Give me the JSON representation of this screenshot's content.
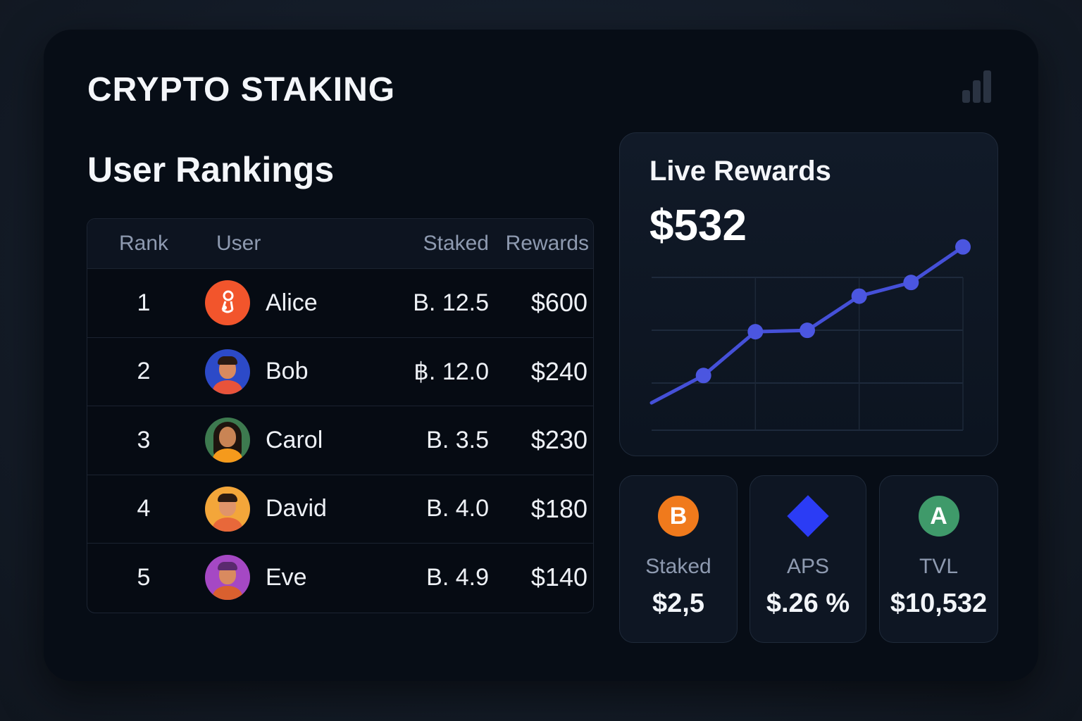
{
  "app": {
    "title": "CRYPTO STAKING"
  },
  "rankings": {
    "title": "User Rankings",
    "columns": {
      "rank": "Rank",
      "user": "User",
      "staked": "Staked",
      "rewards": "Rewards"
    },
    "rows": [
      {
        "rank": "1",
        "name": "Alice",
        "staked": "B. 12.5",
        "rewards": "$600",
        "avatar_color": "#f2552c"
      },
      {
        "rank": "2",
        "name": "Bob",
        "staked": "฿. 12.0",
        "rewards": "$240",
        "avatar_color": "#2c4ac8"
      },
      {
        "rank": "3",
        "name": "Carol",
        "staked": "B. 3.5",
        "rewards": "$230",
        "avatar_color": "#3d7a4f"
      },
      {
        "rank": "4",
        "name": "David",
        "staked": "B. 4.0",
        "rewards": "$180",
        "avatar_color": "#f3a63a"
      },
      {
        "rank": "5",
        "name": "Eve",
        "staked": "B. 4.9",
        "rewards": "$140",
        "avatar_color": "#a548c4"
      }
    ]
  },
  "live_rewards": {
    "title": "Live Rewards",
    "value": "$532",
    "line_color": "#4550d8"
  },
  "stats": {
    "staked": {
      "label": "Staked",
      "value": "$2,5",
      "icon": "B",
      "icon_color": "#f07a1c"
    },
    "aps": {
      "label": "APS",
      "value": "$.26 %",
      "icon_color": "#2b3cf5"
    },
    "tvl": {
      "label": "TVL",
      "value": "$10,532",
      "icon": "A",
      "icon_color": "#3f9a6a"
    }
  },
  "chart_data": {
    "type": "line",
    "title": "Live Rewards",
    "xlabel": "",
    "ylabel": "",
    "grid": true,
    "x": [
      0,
      1,
      2,
      3,
      4,
      5,
      6
    ],
    "series": [
      {
        "values": [
          1,
          2,
          3.6,
          3.65,
          4.9,
          5.4,
          6.7
        ]
      }
    ],
    "markers": [
      1,
      2,
      3,
      4,
      5,
      6
    ],
    "ylim": [
      0,
      7
    ],
    "legend": "none"
  }
}
